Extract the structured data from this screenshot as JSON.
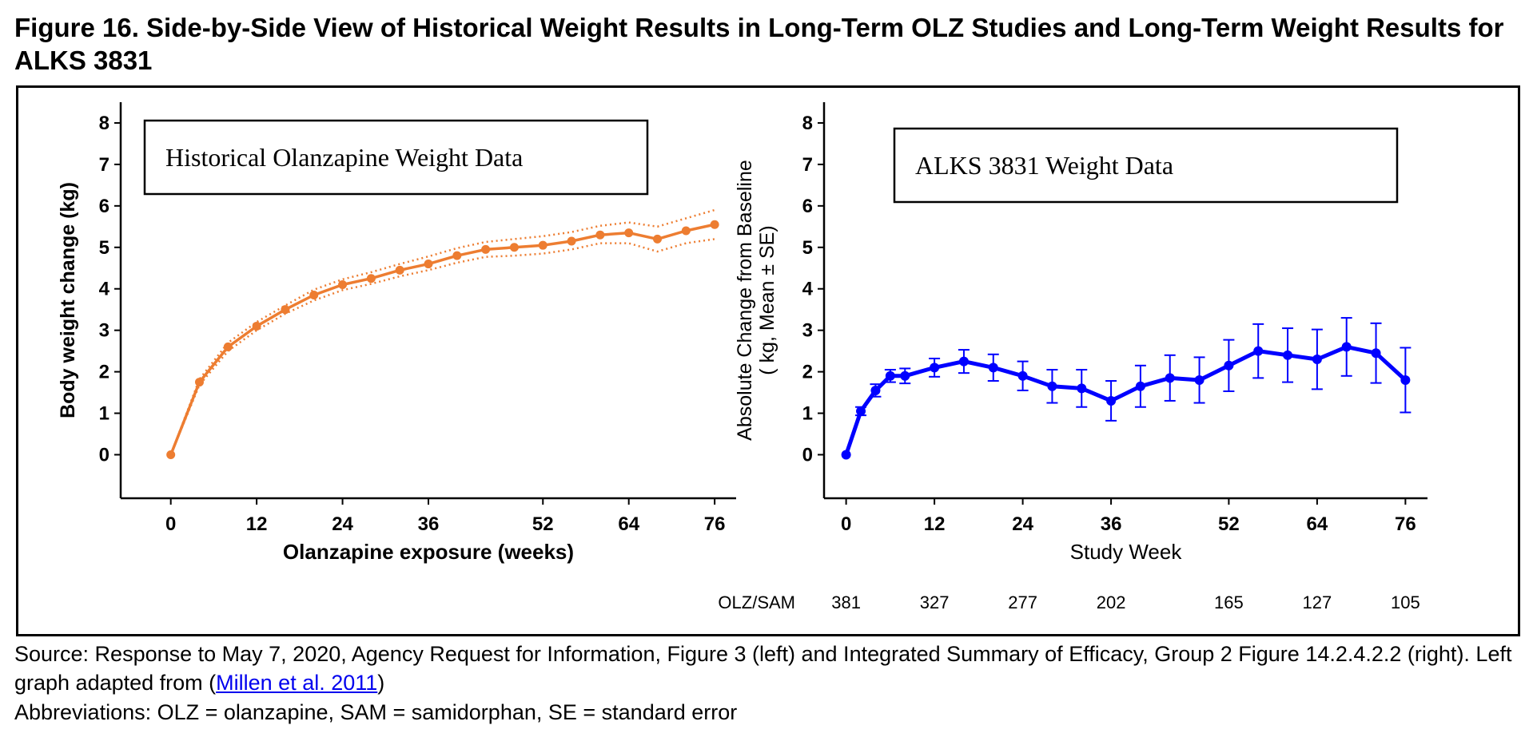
{
  "figure": {
    "title": "Figure 16. Side-by-Side View of Historical Weight Results in Long-Term OLZ Studies and Long-Term Weight Results for ALKS 3831",
    "source_prefix": "Source: Response to May 7, 2020, Agency Request for Information, Figure 3 (left) and Integrated Summary of Efficacy, Group 2 Figure 14.2.4.2.2 (right). Left graph adapted from (",
    "source_link": "Millen et al. 2011",
    "source_suffix": ")",
    "abbreviations": "Abbreviations: OLZ = olanzapine, SAM = samidorphan, SE = standard error"
  },
  "chart_data": [
    {
      "type": "line",
      "title": "Historical Olanzapine Weight Data",
      "xlabel": "Olanzapine exposure (weeks)",
      "ylabel": "Body weight change (kg)",
      "xlim": [
        -7,
        79
      ],
      "ylim": [
        -1.05,
        8.5
      ],
      "xticks": [
        0,
        12,
        24,
        36,
        52,
        64,
        76
      ],
      "xtick_labels": [
        "0",
        "12",
        "24",
        "36",
        "52",
        "64",
        "76"
      ],
      "yticks": [
        0,
        1,
        2,
        3,
        4,
        5,
        6,
        7,
        8
      ],
      "ytick_labels": [
        "0",
        "1",
        "2",
        "3",
        "4",
        "5",
        "6",
        "7",
        "8"
      ],
      "color": "#ed7d31",
      "band_style": "dotted confidence band",
      "x": [
        0,
        4,
        8,
        12,
        16,
        20,
        24,
        28,
        32,
        36,
        40,
        44,
        48,
        52,
        56,
        60,
        64,
        68,
        72,
        76
      ],
      "values": [
        0,
        1.75,
        2.6,
        3.1,
        3.5,
        3.85,
        4.1,
        4.25,
        4.45,
        4.6,
        4.8,
        4.95,
        5.0,
        5.05,
        5.15,
        5.3,
        5.35,
        5.2,
        5.4,
        5.55
      ],
      "lower": [
        0,
        1.68,
        2.5,
        3.0,
        3.4,
        3.72,
        3.97,
        4.12,
        4.3,
        4.45,
        4.63,
        4.77,
        4.8,
        4.85,
        4.95,
        5.1,
        5.1,
        4.9,
        5.1,
        5.2
      ],
      "upper": [
        0,
        1.82,
        2.7,
        3.2,
        3.6,
        3.98,
        4.23,
        4.4,
        4.6,
        4.78,
        4.98,
        5.13,
        5.2,
        5.27,
        5.37,
        5.52,
        5.6,
        5.5,
        5.7,
        5.9
      ]
    },
    {
      "type": "line",
      "title": "ALKS 3831 Weight Data",
      "xlabel": "Study Week",
      "ylabel": "Absolute Change from Baseline",
      "ylabel2": "( kg, Mean ± SE)",
      "xlim": [
        -3,
        79
      ],
      "ylim": [
        -1.05,
        8.5
      ],
      "xticks": [
        0,
        12,
        24,
        36,
        52,
        64,
        76
      ],
      "xtick_labels": [
        "0",
        "12",
        "24",
        "36",
        "52",
        "64",
        "76"
      ],
      "yticks": [
        0,
        1,
        2,
        3,
        4,
        5,
        6,
        7,
        8
      ],
      "ytick_labels": [
        "0",
        "1",
        "2",
        "3",
        "4",
        "5",
        "6",
        "7",
        "8"
      ],
      "color": "#0000ff",
      "x": [
        0,
        2,
        4,
        6,
        8,
        12,
        16,
        20,
        24,
        28,
        32,
        36,
        40,
        44,
        48,
        52,
        56,
        60,
        64,
        68,
        72,
        76
      ],
      "values": [
        0,
        1.05,
        1.55,
        1.9,
        1.9,
        2.1,
        2.25,
        2.1,
        1.9,
        1.65,
        1.6,
        1.3,
        1.65,
        1.85,
        1.8,
        2.15,
        2.5,
        2.4,
        2.3,
        2.6,
        2.45,
        1.8
      ],
      "error": [
        0,
        0.1,
        0.15,
        0.15,
        0.18,
        0.22,
        0.28,
        0.32,
        0.35,
        0.4,
        0.45,
        0.48,
        0.5,
        0.55,
        0.55,
        0.62,
        0.65,
        0.65,
        0.72,
        0.7,
        0.72,
        0.78
      ],
      "n_label": "OLZ/SAM",
      "n_at_x": [
        0,
        12,
        24,
        36,
        52,
        64,
        76
      ],
      "n_values": [
        "381",
        "327",
        "277",
        "202",
        "165",
        "127",
        "105"
      ]
    }
  ]
}
